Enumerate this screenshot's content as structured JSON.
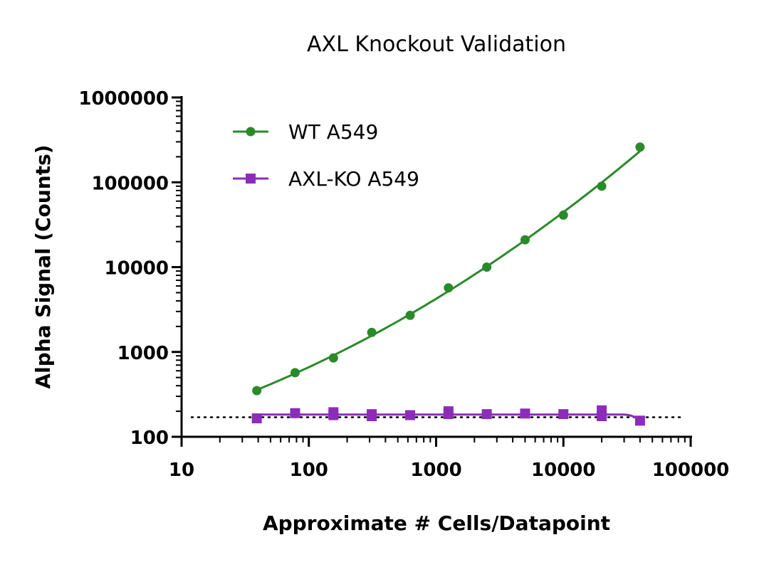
{
  "chart_data": {
    "type": "scatter",
    "title": "AXL Knockout Validation",
    "xlabel": "Approximate # Cells/Datapoint",
    "ylabel": "Alpha Signal (Counts)",
    "x_scale": "log",
    "y_scale": "log",
    "xlim": [
      10,
      100000
    ],
    "ylim": [
      100,
      1000000
    ],
    "x_tick_labels": [
      "10",
      "100",
      "1000",
      "10000",
      "100000"
    ],
    "y_tick_labels": [
      "100",
      "1000",
      "10000",
      "100000",
      "1000000"
    ],
    "x_ticks": [
      10,
      100,
      1000,
      10000,
      100000
    ],
    "y_ticks": [
      100,
      1000,
      10000,
      100000,
      1000000
    ],
    "legend_position": "top-left",
    "background_level": 170,
    "series": [
      {
        "name": "WT A549",
        "color": "#2a8a2a",
        "marker": "circle",
        "points": [
          {
            "x": 39,
            "y": 350
          },
          {
            "x": 78,
            "y": 570
          },
          {
            "x": 156,
            "y": 850
          },
          {
            "x": 312,
            "y": 1700
          },
          {
            "x": 625,
            "y": 2700
          },
          {
            "x": 1250,
            "y": 5700
          },
          {
            "x": 2500,
            "y": 10000
          },
          {
            "x": 5000,
            "y": 21000
          },
          {
            "x": 10000,
            "y": 41000
          },
          {
            "x": 20000,
            "y": 90000
          },
          {
            "x": 40000,
            "y": 260000
          }
        ]
      },
      {
        "name": "AXL-KO A549",
        "color": "#8b2db8",
        "marker": "square",
        "points": [
          {
            "x": 39,
            "y": 165
          },
          {
            "x": 78,
            "y": 190
          },
          {
            "x": 156,
            "y": 195
          },
          {
            "x": 156,
            "y": 180
          },
          {
            "x": 312,
            "y": 185
          },
          {
            "x": 312,
            "y": 175
          },
          {
            "x": 625,
            "y": 180
          },
          {
            "x": 1250,
            "y": 200
          },
          {
            "x": 1250,
            "y": 185
          },
          {
            "x": 2500,
            "y": 185
          },
          {
            "x": 5000,
            "y": 188
          },
          {
            "x": 10000,
            "y": 185
          },
          {
            "x": 20000,
            "y": 205
          },
          {
            "x": 20000,
            "y": 175
          },
          {
            "x": 40000,
            "y": 155
          }
        ]
      }
    ]
  }
}
